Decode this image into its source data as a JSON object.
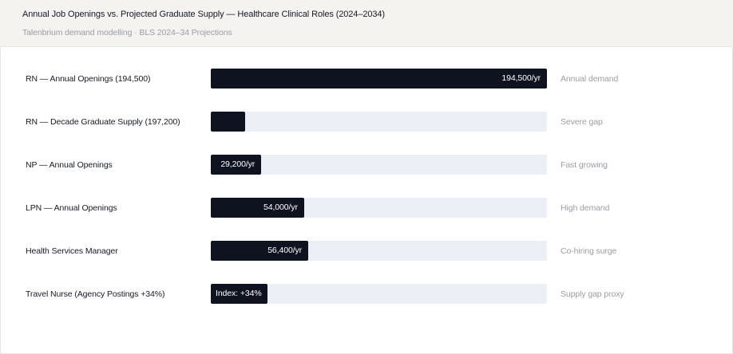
{
  "header": {
    "title": "Annual Job Openings vs. Projected Graduate Supply — Healthcare Clinical Roles (2024–2034)",
    "subtitle": "Talenbrium demand modelling · BLS 2024–34 Projections"
  },
  "chart_data": {
    "type": "bar",
    "orientation": "horizontal",
    "title": "Annual Job Openings vs. Projected Graduate Supply — Healthcare Clinical Roles (2024–2034)",
    "subtitle": "Talenbrium demand modelling · BLS 2024–34 Projections",
    "xlim": [
      0,
      194500
    ],
    "grid": false,
    "colors": {
      "bar": "#0f1320",
      "track": "#eceff6",
      "note": "#9a9da6"
    },
    "rows": [
      {
        "category": "RN — Annual Openings (194,500)",
        "value": 194500,
        "value_label": "194,500/yr",
        "label_align": "right",
        "note": "Annual demand"
      },
      {
        "category": "RN — Decade Graduate Supply (197,200)",
        "value": 19720,
        "value_label": "",
        "label_align": "right",
        "note": "Severe gap"
      },
      {
        "category": "NP — Annual Openings",
        "value": 29200,
        "value_label": "29,200/yr",
        "label_align": "right",
        "note": "Fast growing"
      },
      {
        "category": "LPN — Annual Openings",
        "value": 54000,
        "value_label": "54,000/yr",
        "label_align": "right",
        "note": "High demand"
      },
      {
        "category": "Health Services Manager",
        "value": 56400,
        "value_label": "56,400/yr",
        "label_align": "right",
        "note": "Co-hiring surge"
      },
      {
        "category": "Travel Nurse (Agency Postings +34%)",
        "value": 33000,
        "value_label": "Index: +34%",
        "label_align": "left",
        "note": "Supply gap proxy"
      }
    ]
  }
}
